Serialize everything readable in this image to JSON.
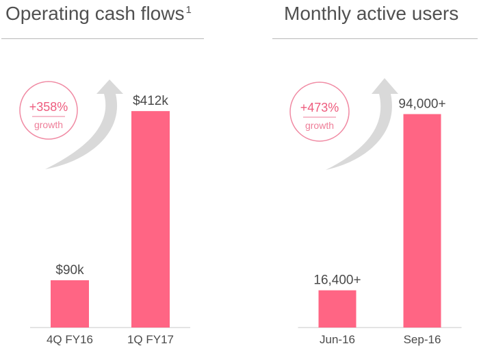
{
  "colors": {
    "bar": "#ff6584",
    "arrow": "#d9d9d9",
    "badge_text": "#ee5c7e",
    "rule": "#b8b8b8"
  },
  "icons": {
    "growth_arrow": "curved-up-arrow-icon"
  },
  "chart_data": [
    {
      "type": "bar",
      "title": "Operating cash flows",
      "title_superscript": "1",
      "categories": [
        "4Q FY16",
        "1Q FY17"
      ],
      "values": [
        90,
        412
      ],
      "value_labels": [
        "$90k",
        "$412k"
      ],
      "unit": "k USD",
      "ylim": [
        0,
        450
      ],
      "grid": false,
      "badge": {
        "value": "+358%",
        "label": "growth"
      }
    },
    {
      "type": "bar",
      "title": "Monthly active users",
      "categories": [
        "Jun-16",
        "Sep-16"
      ],
      "values": [
        16400,
        94000
      ],
      "value_labels": [
        "16,400+",
        "94,000+"
      ],
      "ylim": [
        0,
        102000
      ],
      "grid": false,
      "badge": {
        "value": "+473%",
        "label": "growth"
      }
    }
  ]
}
